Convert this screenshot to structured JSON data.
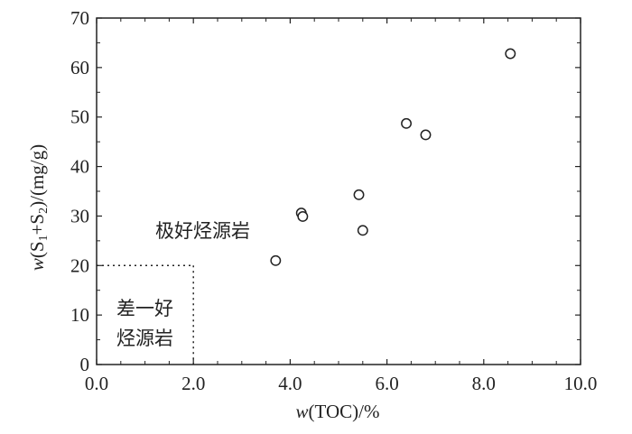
{
  "chart_data": {
    "type": "scatter",
    "xlim": [
      0,
      10
    ],
    "ylim": [
      0,
      70
    ],
    "x_ticks": [
      {
        "value": 0,
        "label": "0.0"
      },
      {
        "value": 2,
        "label": "2.0"
      },
      {
        "value": 4,
        "label": "4.0"
      },
      {
        "value": 6,
        "label": "6.0"
      },
      {
        "value": 8,
        "label": "8.0"
      },
      {
        "value": 10,
        "label": "10.0"
      }
    ],
    "y_ticks": [
      {
        "value": 0,
        "label": "0"
      },
      {
        "value": 10,
        "label": "10"
      },
      {
        "value": 20,
        "label": "20"
      },
      {
        "value": 30,
        "label": "30"
      },
      {
        "value": 40,
        "label": "40"
      },
      {
        "value": 50,
        "label": "50"
      },
      {
        "value": 60,
        "label": "60"
      },
      {
        "value": 70,
        "label": "70"
      }
    ],
    "xlabel": {
      "italic": "w",
      "rest": "(TOC)/%"
    },
    "ylabel": {
      "italic": "w",
      "a": "(S",
      "sub1": "1",
      "b": "+S",
      "sub2": "2",
      "c": ")/(mg/g)"
    },
    "points": [
      {
        "x": 3.7,
        "y": 21.0
      },
      {
        "x": 4.23,
        "y": 30.6
      },
      {
        "x": 4.26,
        "y": 29.9
      },
      {
        "x": 5.42,
        "y": 34.3
      },
      {
        "x": 5.5,
        "y": 27.1
      },
      {
        "x": 6.4,
        "y": 48.7
      },
      {
        "x": 6.8,
        "y": 46.4
      },
      {
        "x": 8.55,
        "y": 62.8
      }
    ],
    "region": {
      "x_max": 2.0,
      "y_max": 20,
      "style": "dotted"
    },
    "annotations": {
      "excellent": "极好烃源岩",
      "poor_line1": "差一好",
      "poor_line2": "烃源岩"
    },
    "grid": false,
    "legend": "none"
  }
}
